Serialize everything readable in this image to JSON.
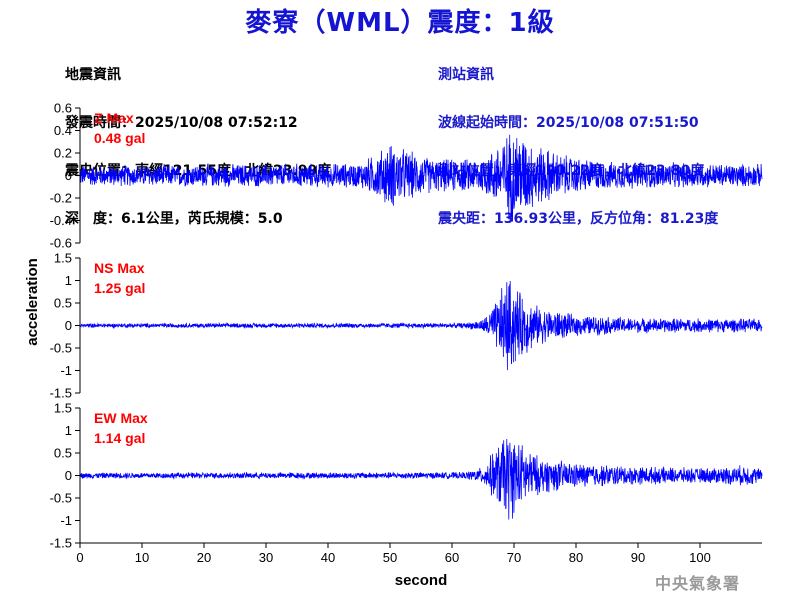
{
  "title": "麥寮（WML）震度：1級",
  "quake_info": {
    "heading": "地震資訊",
    "time": "發震時間：2025/10/08 07:52:12",
    "location": "震央位置：東經121.55度，北緯23.99度",
    "depth": "深　度：6.1公里，芮氏規模：5.0"
  },
  "station_info": {
    "heading": "測站資訊",
    "wave_start": "波線起始時間：2025/10/08 07:51:50",
    "location": "測站位置：東經120.22度，北緯23.80度",
    "distance": "震央距：136.93公里，反方位角：81.23度"
  },
  "agency": "中央氣象署",
  "chart_data": [
    {
      "type": "line",
      "component": "Z",
      "max_label": "Z Max",
      "max_value": "0.48 gal",
      "ylim": [
        -0.6,
        0.6
      ],
      "yticks": [
        -0.6,
        -0.4,
        -0.2,
        0,
        0.2,
        0.4,
        0.6
      ],
      "xlim": [
        0,
        110
      ],
      "line_color": "#0000ff",
      "envelope": [
        [
          0,
          0.1
        ],
        [
          45,
          0.12
        ],
        [
          48,
          0.22
        ],
        [
          50,
          0.32
        ],
        [
          53,
          0.24
        ],
        [
          57,
          0.16
        ],
        [
          64,
          0.16
        ],
        [
          66,
          0.22
        ],
        [
          68,
          0.35
        ],
        [
          70,
          0.48
        ],
        [
          73,
          0.32
        ],
        [
          78,
          0.2
        ],
        [
          85,
          0.13
        ],
        [
          110,
          0.11
        ]
      ]
    },
    {
      "type": "line",
      "component": "NS",
      "max_label": "NS Max",
      "max_value": "1.25 gal",
      "ylim": [
        -1.5,
        1.5
      ],
      "yticks": [
        -1.5,
        -1,
        -0.5,
        0,
        0.5,
        1,
        1.5
      ],
      "xlim": [
        0,
        110
      ],
      "line_color": "#0000ff",
      "envelope": [
        [
          0,
          0.05
        ],
        [
          62,
          0.06
        ],
        [
          65,
          0.15
        ],
        [
          67,
          0.55
        ],
        [
          69,
          1.25
        ],
        [
          71,
          0.8
        ],
        [
          74,
          0.45
        ],
        [
          80,
          0.25
        ],
        [
          90,
          0.18
        ],
        [
          110,
          0.16
        ]
      ]
    },
    {
      "type": "line",
      "component": "EW",
      "max_label": "EW Max",
      "max_value": "1.14 gal",
      "ylim": [
        -1.5,
        1.5
      ],
      "yticks": [
        -1.5,
        -1,
        -0.5,
        0,
        0.5,
        1,
        1.5
      ],
      "xlim": [
        0,
        110
      ],
      "line_color": "#0000ff",
      "envelope": [
        [
          0,
          0.07
        ],
        [
          62,
          0.08
        ],
        [
          65,
          0.2
        ],
        [
          67,
          0.65
        ],
        [
          69,
          1.14
        ],
        [
          71,
          0.8
        ],
        [
          74,
          0.45
        ],
        [
          80,
          0.3
        ],
        [
          90,
          0.22
        ],
        [
          100,
          0.18
        ],
        [
          108,
          0.25
        ],
        [
          110,
          0.15
        ]
      ]
    }
  ],
  "xticks": [
    0,
    10,
    20,
    30,
    40,
    50,
    60,
    70,
    80,
    90,
    100
  ],
  "xlabel": "second",
  "ylabel": "acceleration",
  "max_label_color": "#ff0000"
}
